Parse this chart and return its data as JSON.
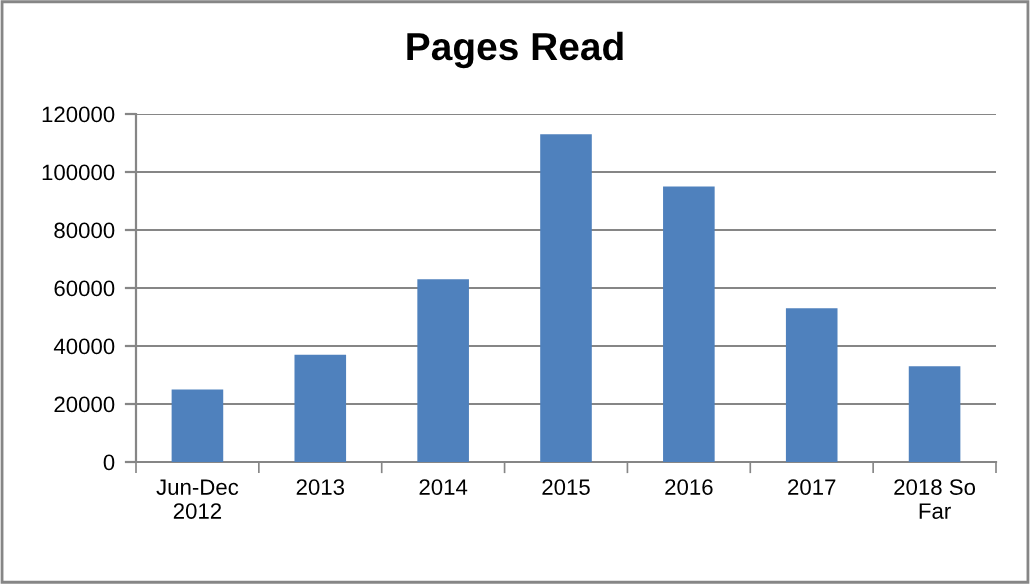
{
  "chart_data": {
    "type": "bar",
    "title": "Pages Read",
    "categories": [
      "Jun-Dec 2012",
      "2013",
      "2014",
      "2015",
      "2016",
      "2017",
      "2018 So Far"
    ],
    "values": [
      25000,
      37000,
      63000,
      113000,
      95000,
      53000,
      33000
    ],
    "color": "#4f81bd",
    "ylim": [
      0,
      120000
    ],
    "yticks": [
      0,
      20000,
      40000,
      60000,
      80000,
      100000,
      120000
    ],
    "grid": "y"
  }
}
